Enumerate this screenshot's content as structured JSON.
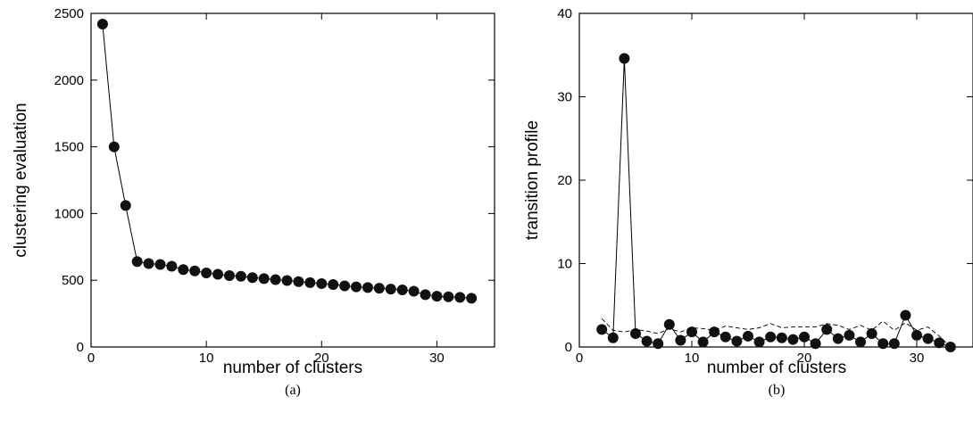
{
  "chart_data": [
    {
      "type": "line",
      "caption": "(a)",
      "xlabel": "number of clusters",
      "ylabel": "clustering evaluation",
      "xlim": [
        0,
        35
      ],
      "ylim": [
        0,
        2500
      ],
      "xticks": [
        0,
        10,
        20,
        30
      ],
      "yticks": [
        0,
        500,
        1000,
        1500,
        2000,
        2500
      ],
      "series": [
        {
          "style": "solid line with filled circle markers",
          "x": [
            1,
            2,
            3,
            4,
            5,
            6,
            7,
            8,
            9,
            10,
            11,
            12,
            13,
            14,
            15,
            16,
            17,
            18,
            19,
            20,
            21,
            22,
            23,
            24,
            25,
            26,
            27,
            28,
            29,
            30,
            31,
            32,
            33
          ],
          "y": [
            2420,
            1500,
            1060,
            640,
            625,
            618,
            605,
            580,
            570,
            555,
            545,
            535,
            530,
            520,
            512,
            505,
            498,
            490,
            482,
            475,
            468,
            458,
            450,
            445,
            440,
            434,
            428,
            418,
            392,
            380,
            376,
            372,
            365
          ]
        }
      ]
    },
    {
      "type": "line",
      "caption": "(b)",
      "xlabel": "number of clusters",
      "ylabel": "transition profile",
      "xlim": [
        0,
        35
      ],
      "ylim": [
        0,
        40
      ],
      "xticks": [
        0,
        10,
        20,
        30
      ],
      "yticks": [
        0,
        10,
        20,
        30,
        40
      ],
      "series": [
        {
          "style": "solid line with filled circle markers",
          "x": [
            2,
            3,
            4,
            5,
            6,
            7,
            8,
            9,
            10,
            11,
            12,
            13,
            14,
            15,
            16,
            17,
            18,
            19,
            20,
            21,
            22,
            23,
            24,
            25,
            26,
            27,
            28,
            29,
            30,
            31,
            32,
            33
          ],
          "y": [
            2.1,
            1.1,
            34.6,
            1.6,
            0.7,
            0.4,
            2.7,
            0.8,
            1.8,
            0.6,
            1.8,
            1.2,
            0.7,
            1.3,
            0.6,
            1.2,
            1.1,
            0.9,
            1.2,
            0.4,
            2.1,
            1.0,
            1.4,
            0.6,
            1.6,
            0.4,
            0.4,
            3.8,
            1.4,
            1.0,
            0.5,
            0.0
          ]
        },
        {
          "style": "dashed line",
          "x": [
            2,
            3,
            4,
            5,
            6,
            7,
            8,
            9,
            10,
            11,
            12,
            13,
            14,
            15,
            16,
            17,
            18,
            19,
            20,
            21,
            22,
            23,
            24,
            25,
            26,
            27,
            28,
            29,
            30,
            31,
            32,
            33
          ],
          "y": [
            3.4,
            2.0,
            1.8,
            2.1,
            1.9,
            1.6,
            2.2,
            1.8,
            2.3,
            2.2,
            2.0,
            2.5,
            2.3,
            2.1,
            2.3,
            2.8,
            2.3,
            2.4,
            2.4,
            2.4,
            2.8,
            2.6,
            2.1,
            2.6,
            2.0,
            3.1,
            2.0,
            2.9,
            2.0,
            2.4,
            1.3,
            0.0
          ]
        }
      ]
    }
  ]
}
